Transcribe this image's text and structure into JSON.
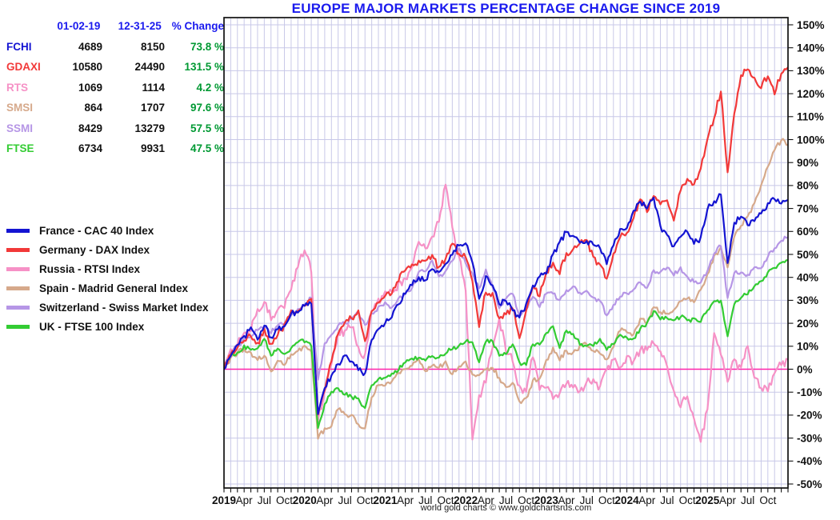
{
  "title_color": "#1a1aee",
  "footer": "world gold charts © www.goldchartsrus.com",
  "stats_table": {
    "header_color": "#1a1aee",
    "change_color": "#009933",
    "headers": [
      "01-02-19",
      "12-31-25",
      "% Change"
    ]
  },
  "chart_data": {
    "type": "line",
    "title": "EUROPE MAJOR MARKETS PERCENTAGE CHANGE SINCE 2019",
    "xlabel": "",
    "ylabel": "percent change",
    "ylim": [
      -50,
      150
    ],
    "y_tick_step": 10,
    "y_tick_suffix": "%",
    "x_months_total": 84,
    "grid": true,
    "grid_color": "#c8c8e8",
    "zero_line_color": "#ff22aa",
    "frame_color": "#111111",
    "legend_position": "left",
    "x_ticks": [
      {
        "m": 0,
        "label": "2019",
        "bold": true
      },
      {
        "m": 3,
        "label": "Apr"
      },
      {
        "m": 6,
        "label": "Jul"
      },
      {
        "m": 9,
        "label": "Oct"
      },
      {
        "m": 12,
        "label": "2020",
        "bold": true
      },
      {
        "m": 15,
        "label": "Apr"
      },
      {
        "m": 18,
        "label": "Jul"
      },
      {
        "m": 21,
        "label": "Oct"
      },
      {
        "m": 24,
        "label": "2021",
        "bold": true
      },
      {
        "m": 27,
        "label": "Apr"
      },
      {
        "m": 30,
        "label": "Jul"
      },
      {
        "m": 33,
        "label": "Oct"
      },
      {
        "m": 36,
        "label": "2022",
        "bold": true
      },
      {
        "m": 39,
        "label": "Apr"
      },
      {
        "m": 42,
        "label": "Jul"
      },
      {
        "m": 45,
        "label": "Oct"
      },
      {
        "m": 48,
        "label": "2023",
        "bold": true
      },
      {
        "m": 51,
        "label": "Apr"
      },
      {
        "m": 54,
        "label": "Jul"
      },
      {
        "m": 57,
        "label": "Oct"
      },
      {
        "m": 60,
        "label": "2024",
        "bold": true
      },
      {
        "m": 63,
        "label": "Apr"
      },
      {
        "m": 66,
        "label": "Jul"
      },
      {
        "m": 69,
        "label": "Oct"
      },
      {
        "m": 72,
        "label": "2025",
        "bold": true
      },
      {
        "m": 75,
        "label": "Apr"
      },
      {
        "m": 78,
        "label": "Jul"
      },
      {
        "m": 81,
        "label": "Oct"
      }
    ],
    "series": [
      {
        "symbol": "FCHI",
        "label": "France - CAC 40 Index",
        "color": "#1414d2",
        "start": "4689",
        "end": "8150",
        "change": "73.8 %",
        "noise": 1.3,
        "monthly_pct": [
          0,
          6,
          11,
          14,
          18,
          13,
          19,
          14,
          17,
          19,
          24,
          25,
          28,
          29,
          -20,
          -8,
          -3,
          2,
          6,
          3,
          0,
          -2,
          13,
          18,
          20,
          23,
          28,
          33,
          37,
          40,
          39,
          44,
          42,
          46,
          50,
          54,
          55,
          47,
          31,
          40,
          37,
          28,
          30,
          25,
          23,
          28,
          36,
          40,
          42,
          50,
          55,
          60,
          58,
          55,
          56,
          54,
          53,
          46,
          54,
          61,
          62,
          69,
          73,
          70,
          75,
          62,
          58,
          53,
          58,
          60,
          55,
          57,
          70,
          73,
          76,
          46,
          64,
          66,
          63,
          65,
          68,
          72,
          74,
          72,
          73.8
        ]
      },
      {
        "symbol": "GDAXI",
        "label": "Germany - DAX Index",
        "color": "#f23939",
        "start": "10580",
        "end": "24490",
        "change": "131.5 %",
        "noise": 1.5,
        "monthly_pct": [
          0,
          6,
          9,
          13,
          14,
          11,
          17,
          11,
          15,
          19,
          25,
          25,
          28,
          30,
          -20,
          -9,
          4,
          16,
          21,
          22,
          25,
          12,
          25,
          29,
          32,
          33,
          39,
          43,
          45,
          47,
          47,
          50,
          44,
          48,
          54,
          50,
          49,
          38,
          19,
          34,
          33,
          22,
          24,
          27,
          14,
          25,
          36,
          32,
          42,
          46,
          42,
          50,
          52,
          55,
          56,
          49,
          45,
          40,
          50,
          58,
          60,
          66,
          74,
          69,
          76,
          72,
          74,
          65,
          78,
          83,
          80,
          88,
          100,
          110,
          121,
          86,
          112,
          128,
          131,
          127,
          123,
          128,
          120,
          129,
          131.5
        ]
      },
      {
        "symbol": "RTS",
        "label": "Russia - RTSI Index",
        "color": "#f691c6",
        "start": "1069",
        "end": "1114",
        "change": "4.2 %",
        "noise": 2.0,
        "monthly_pct": [
          0,
          9,
          11,
          15,
          17,
          26,
          29,
          22,
          25,
          27,
          35,
          45,
          52,
          43,
          -22,
          -9,
          2,
          16,
          16,
          19,
          9,
          6,
          25,
          30,
          33,
          34,
          37,
          39,
          45,
          55,
          52,
          58,
          65,
          80,
          62,
          49,
          35,
          -30,
          -12,
          -5,
          10,
          22,
          8,
          4,
          -8,
          -10,
          6,
          -9,
          -8,
          -13,
          -10,
          -6,
          -8,
          -10,
          -6,
          -4,
          -8,
          0,
          4,
          1,
          5,
          3,
          8,
          9,
          12,
          7,
          2,
          -9,
          -16,
          -12,
          -22,
          -31,
          -18,
          16,
          6,
          -5,
          4,
          0,
          10,
          -4,
          -8,
          -9,
          -2,
          2,
          4.2
        ]
      },
      {
        "symbol": "SMSI",
        "label": "Spain - Madrid General Index",
        "color": "#d6a98b",
        "start": "864",
        "end": "1707",
        "change": "97.6 %",
        "noise": 1.1,
        "monthly_pct": [
          0,
          5,
          7,
          9,
          7,
          4,
          6,
          -1,
          4,
          2,
          6,
          8,
          10,
          8,
          -30,
          -26,
          -25,
          -17,
          -20,
          -20,
          -24,
          -26,
          -12,
          -7,
          -7,
          -5,
          -2,
          0,
          2,
          4,
          -1,
          2,
          1,
          3,
          -2,
          1,
          3,
          -2,
          -3,
          0,
          1,
          -4,
          -8,
          -6,
          -14,
          -13,
          -5,
          -4,
          4,
          9,
          4,
          8,
          7,
          10,
          11,
          8,
          7,
          4,
          10,
          17,
          16,
          15,
          22,
          20,
          27,
          25,
          24,
          26,
          30,
          31,
          29,
          35,
          41,
          49,
          53,
          44,
          58,
          62,
          67,
          72,
          80,
          88,
          95,
          100,
          97.6
        ]
      },
      {
        "symbol": "SSMI",
        "label": "Switzerland - Swiss Market Index",
        "color": "#b696e6",
        "start": "8429",
        "end": "13279",
        "change": "57.5 %",
        "noise": 1.0,
        "monthly_pct": [
          0,
          7,
          10,
          13,
          14,
          17,
          18,
          16,
          19,
          20,
          23,
          26,
          28,
          31,
          -5,
          11,
          15,
          19,
          20,
          22,
          25,
          19,
          24,
          27,
          29,
          27,
          31,
          33,
          35,
          42,
          43,
          47,
          40,
          43,
          47,
          53,
          46,
          42,
          35,
          43,
          36,
          27,
          31,
          33,
          23,
          26,
          32,
          27,
          33,
          33,
          30,
          34,
          36,
          33,
          34,
          31,
          30,
          23,
          28,
          32,
          33,
          35,
          38,
          35,
          43,
          42,
          44,
          41,
          44,
          40,
          38,
          38,
          43,
          50,
          54,
          31,
          42,
          42,
          41,
          44,
          44,
          49,
          53,
          56,
          57.5
        ]
      },
      {
        "symbol": "FTSE",
        "label": "UK - FTSE 100 Index",
        "color": "#33cc33",
        "start": "6734",
        "end": "9931",
        "change": "47.5 %",
        "noise": 1.0,
        "monthly_pct": [
          0,
          6,
          7,
          10,
          8,
          9,
          13,
          6,
          9,
          7,
          9,
          12,
          12,
          10,
          -26,
          -15,
          -10,
          -8,
          -11,
          -12,
          -13,
          -17,
          -7,
          -4,
          -4,
          -2,
          0,
          3,
          5,
          5,
          4,
          6,
          5,
          7,
          9,
          10,
          12,
          12,
          3,
          12,
          12,
          6,
          7,
          11,
          3,
          2,
          11,
          11,
          16,
          19,
          9,
          17,
          15,
          11,
          10,
          10,
          13,
          8,
          11,
          15,
          14,
          13,
          18,
          20,
          25,
          22,
          22,
          21,
          23,
          21,
          22,
          21,
          26,
          30,
          30,
          14,
          28,
          31,
          33,
          36,
          38,
          42,
          44,
          46,
          47.5
        ]
      }
    ]
  }
}
